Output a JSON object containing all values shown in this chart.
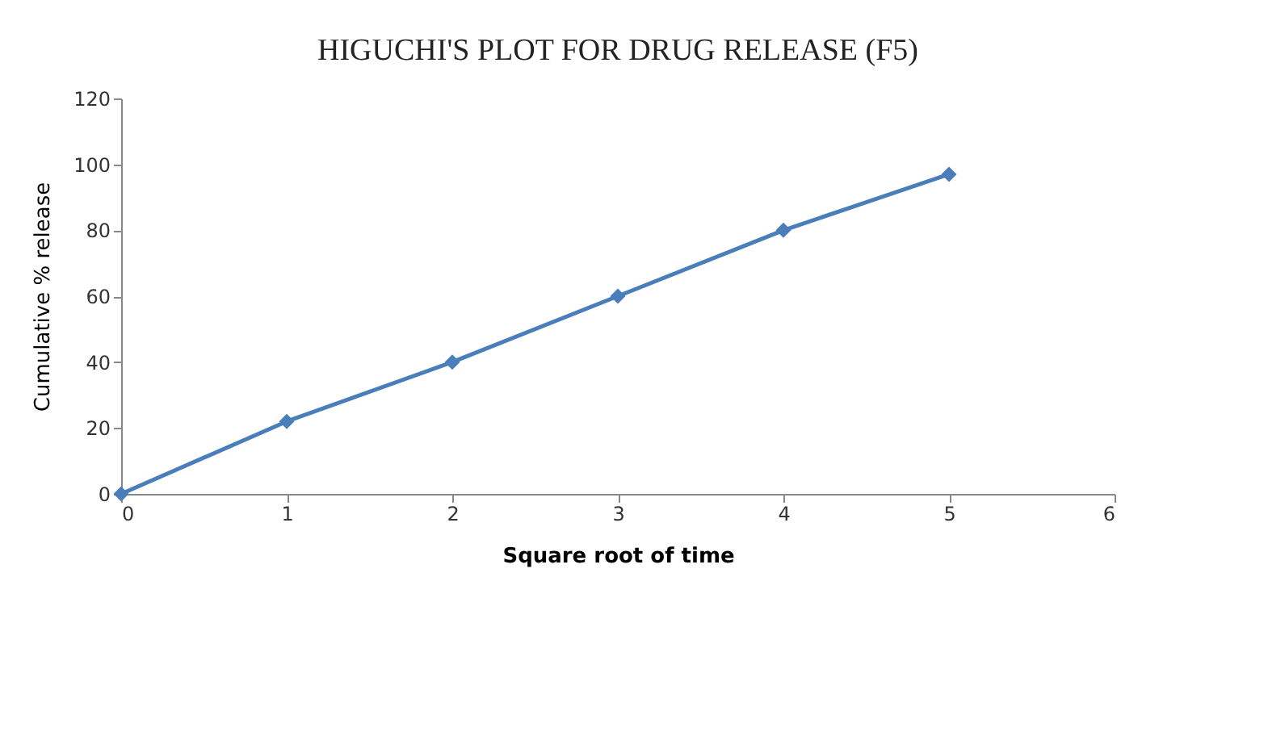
{
  "chart_data": {
    "type": "line",
    "title": "HIGUCHI'S PLOT FOR DRUG RELEASE (F5)",
    "xlabel": "Square root of time",
    "ylabel": "Cumulative % release",
    "x": [
      0,
      1,
      2,
      3,
      4,
      5
    ],
    "series": [
      {
        "color": "#4a7ebb",
        "values": [
          0,
          22,
          40,
          60,
          80,
          97
        ]
      }
    ],
    "xlim": [
      0,
      6
    ],
    "xticks": [
      0,
      1,
      2,
      3,
      4,
      5,
      6
    ],
    "ylim": [
      0,
      120
    ],
    "yticks": [
      0,
      20,
      40,
      60,
      80,
      100,
      120
    ],
    "grid": false,
    "legend": false,
    "marker": "diamond",
    "line_style": "solid"
  }
}
